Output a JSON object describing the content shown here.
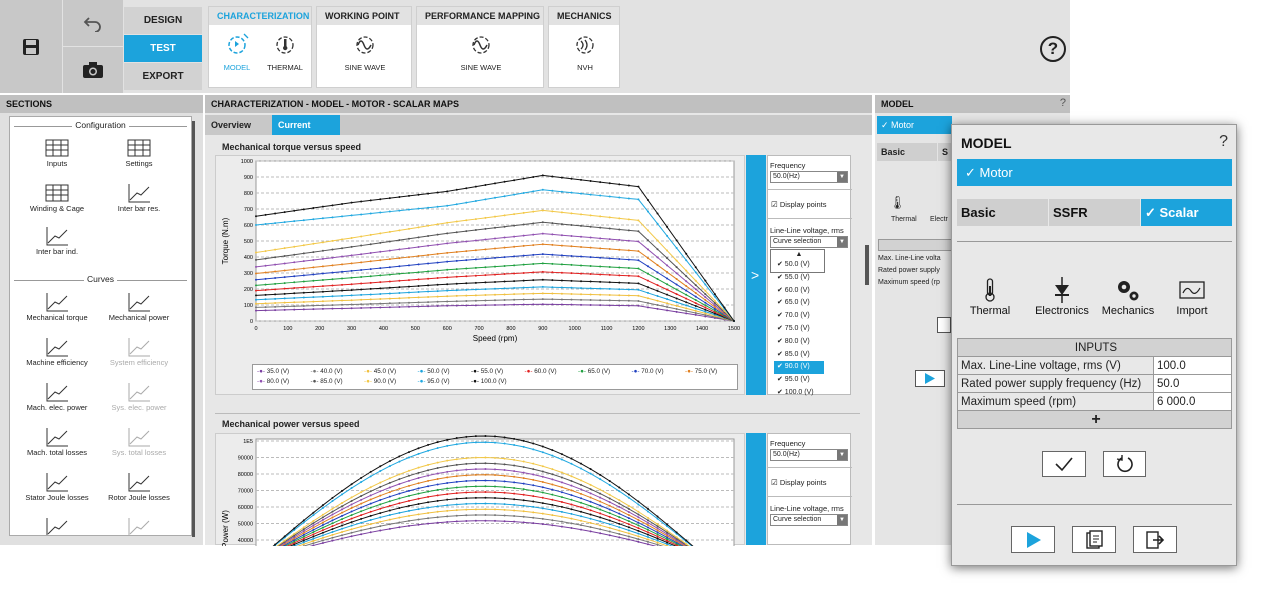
{
  "ribbon": {
    "modes": [
      "DESIGN",
      "TEST",
      "EXPORT"
    ],
    "active_mode": "TEST",
    "groups": [
      {
        "title": "CHARACTERIZATION",
        "items": [
          "MODEL",
          "THERMAL"
        ]
      },
      {
        "title": "WORKING POINT",
        "items": [
          "SINE WAVE"
        ]
      },
      {
        "title": "PERFORMANCE MAPPING",
        "items": [
          "SINE WAVE"
        ]
      },
      {
        "title": "MECHANICS",
        "items": [
          "NVH"
        ]
      }
    ],
    "help": "?"
  },
  "sections": {
    "title": "SECTIONS",
    "configuration_label": "Configuration",
    "configuration_items": [
      "Inputs",
      "Settings",
      "Winding & Cage",
      "Inter bar res.",
      "Inter bar ind."
    ],
    "curves_label": "Curves",
    "curves_items": [
      "Mechanical torque",
      "Mechanical power",
      "Machine efficiency",
      "System efficiency",
      "Mach. elec. power",
      "Sys. elec. power",
      "Mach. total losses",
      "Sys. total losses",
      "Stator Joule losses",
      "Rotor Joule losses"
    ]
  },
  "main": {
    "title": "CHARACTERIZATION - MODEL - MOTOR - SCALAR MAPS",
    "tabs": [
      "Overview",
      "Current"
    ],
    "active_tab": "Current",
    "chart1_title": "Mechanical torque versus speed",
    "chart2_title": "Mechanical power versus speed",
    "side": {
      "frequency_label": "Frequency",
      "frequency_value": "50.0(Hz)",
      "display_points": "Display points",
      "voltage_label": "Line-Line voltage, rms",
      "curve_selection": "Curve selection",
      "expand": ">",
      "dropdown": [
        "50.0 (V)",
        "55.0 (V)",
        "60.0 (V)",
        "65.0 (V)",
        "70.0 (V)",
        "75.0 (V)",
        "80.0 (V)",
        "85.0 (V)",
        "90.0 (V)",
        "95.0 (V)",
        "100.0 (V)"
      ],
      "dropdown_selected": "90.0 (V)"
    },
    "legend": [
      "35.0 (V)",
      "40.0 (V)",
      "45.0 (V)",
      "50.0 (V)",
      "55.0 (V)",
      "60.0 (V)",
      "65.0 (V)",
      "70.0 (V)",
      "75.0 (V)",
      "80.0 (V)",
      "85.0 (V)",
      "90.0 (V)",
      "95.0 (V)",
      "100.0 (V)"
    ]
  },
  "chart_data": [
    {
      "type": "line",
      "title": "Mechanical torque versus speed",
      "xlabel": "Speed (rpm)",
      "ylabel": "Torque (N.m)",
      "xlim": [
        0,
        1500
      ],
      "ylim": [
        0,
        1000
      ],
      "xticks": [
        0,
        100,
        200,
        300,
        400,
        500,
        600,
        700,
        800,
        900,
        1000,
        1100,
        1200,
        1300,
        1400,
        1500
      ],
      "yticks": [
        0,
        100,
        200,
        300,
        400,
        500,
        600,
        700,
        800,
        900,
        1000
      ],
      "grid": true,
      "legend_position": "bottom",
      "series": [
        {
          "name": "35.0 (V)",
          "color": "#7a3fa0",
          "values_x": [
            0,
            300,
            600,
            900,
            1200,
            1500
          ],
          "values_y": [
            65,
            80,
            95,
            105,
            95,
            0
          ]
        },
        {
          "name": "40.0 (V)",
          "color": "#777777",
          "values_x": [
            0,
            300,
            600,
            900,
            1200,
            1500
          ],
          "values_y": [
            85,
            103,
            122,
            137,
            125,
            0
          ]
        },
        {
          "name": "45.0 (V)",
          "color": "#f0c040",
          "values_x": [
            0,
            300,
            600,
            900,
            1200,
            1500
          ],
          "values_y": [
            108,
            130,
            155,
            173,
            158,
            0
          ]
        },
        {
          "name": "50.0 (V)",
          "color": "#1ca3dc",
          "values_x": [
            0,
            300,
            600,
            900,
            1200,
            1500
          ],
          "values_y": [
            133,
            160,
            190,
            213,
            195,
            0
          ]
        },
        {
          "name": "55.0 (V)",
          "color": "#111111",
          "values_x": [
            0,
            300,
            600,
            900,
            1200,
            1500
          ],
          "values_y": [
            160,
            193,
            230,
            258,
            235,
            0
          ]
        },
        {
          "name": "60.0 (V)",
          "color": "#e02020",
          "values_x": [
            0,
            300,
            600,
            900,
            1200,
            1500
          ],
          "values_y": [
            190,
            230,
            273,
            307,
            280,
            0
          ]
        },
        {
          "name": "65.0 (V)",
          "color": "#20a040",
          "values_x": [
            0,
            300,
            600,
            900,
            1200,
            1500
          ],
          "values_y": [
            223,
            270,
            320,
            360,
            328,
            0
          ]
        },
        {
          "name": "70.0 (V)",
          "color": "#2040c0",
          "values_x": [
            0,
            300,
            600,
            900,
            1200,
            1500
          ],
          "values_y": [
            258,
            313,
            371,
            418,
            380,
            0
          ]
        },
        {
          "name": "75.0 (V)",
          "color": "#e08020",
          "values_x": [
            0,
            300,
            600,
            900,
            1200,
            1500
          ],
          "values_y": [
            297,
            360,
            426,
            480,
            437,
            0
          ]
        },
        {
          "name": "80.0 (V)",
          "color": "#9050b0",
          "values_x": [
            0,
            300,
            600,
            900,
            1200,
            1500
          ],
          "values_y": [
            338,
            410,
            485,
            546,
            497,
            0
          ]
        },
        {
          "name": "85.0 (V)",
          "color": "#555555",
          "values_x": [
            0,
            300,
            600,
            900,
            1200,
            1500
          ],
          "values_y": [
            382,
            463,
            548,
            617,
            561,
            0
          ]
        },
        {
          "name": "90.0 (V)",
          "color": "#f2c848",
          "values_x": [
            0,
            300,
            600,
            900,
            1200,
            1500
          ],
          "values_y": [
            428,
            519,
            614,
            691,
            629,
            0
          ]
        },
        {
          "name": "95.0 (V)",
          "color": "#20a8e0",
          "values_x": [
            0,
            300,
            600,
            900,
            1200,
            1500
          ],
          "values_y": [
            600,
            660,
            720,
            820,
            760,
            0
          ]
        },
        {
          "name": "100.0 (V)",
          "color": "#111111",
          "values_x": [
            0,
            300,
            600,
            900,
            1200,
            1500
          ],
          "values_y": [
            655,
            740,
            810,
            910,
            840,
            0
          ]
        }
      ]
    },
    {
      "type": "line",
      "title": "Mechanical power versus speed",
      "ylabel": "Power (W)",
      "yticks_shown": [
        "1E5",
        "90000",
        "80000",
        "70000",
        "60000",
        "50000",
        "40000"
      ],
      "series_count": 14
    }
  ],
  "model_behind": {
    "title": "MODEL",
    "help": "?",
    "motor": "✓ Motor",
    "tabs": [
      "Basic",
      "S"
    ],
    "labels": [
      "Thermal",
      "Electr"
    ],
    "rows": [
      "Max. Line-Line volta",
      "Rated power supply",
      "Maximum speed (rp"
    ]
  },
  "popup": {
    "title": "MODEL",
    "help": "?",
    "motor": "✓ Motor",
    "tabs": [
      "Basic",
      "SSFR",
      "✓ Scalar"
    ],
    "active_tab": "✓ Scalar",
    "icons": [
      "Thermal",
      "Electronics",
      "Mechanics",
      "Import"
    ],
    "inputs_header": "INPUTS",
    "inputs": [
      {
        "label": "Max. Line-Line voltage, rms (V)",
        "value": "100.0"
      },
      {
        "label": "Rated power supply frequency (Hz)",
        "value": "50.0"
      },
      {
        "label": "Maximum speed (rpm)",
        "value": "6 000.0"
      }
    ],
    "add": "+"
  }
}
